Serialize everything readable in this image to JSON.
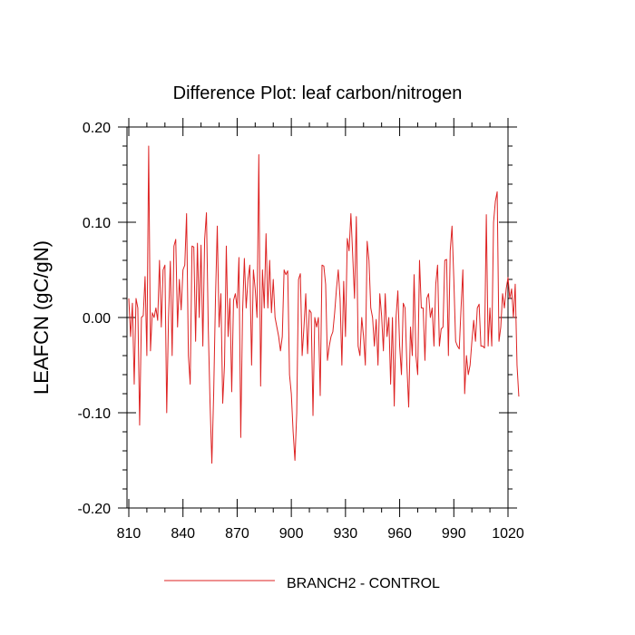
{
  "chart_data": {
    "type": "line",
    "title": "Difference Plot: leaf carbon/nitrogen",
    "xlabel": "",
    "ylabel": "LEAFCN  (gC/gN)",
    "xlim": [
      809,
      1020
    ],
    "ylim": [
      -0.2,
      0.2
    ],
    "x_ticks": [
      810,
      840,
      870,
      900,
      930,
      960,
      990,
      1020
    ],
    "x_tick_labels": [
      "810",
      "840",
      "870",
      "900",
      "930",
      "960",
      "990",
      "1020"
    ],
    "y_ticks": [
      0.2,
      0.1,
      0.0,
      -0.1,
      -0.2
    ],
    "y_tick_labels": [
      "0.20",
      "0.10",
      "0.00",
      "-0.10",
      "-0.20"
    ],
    "grid": false,
    "legend_position": "bottom-center",
    "line_color": "#dd2222",
    "series": [
      {
        "name": "BRANCH2 - CONTROL",
        "x_start": 810,
        "x_step": 1,
        "values": [
          0.02,
          -0.02,
          0.015,
          -0.07,
          0.02,
          0.01,
          -0.113,
          0.0,
          0.002,
          0.043,
          -0.04,
          0.18,
          -0.035,
          0.005,
          0.0,
          0.01,
          -0.003,
          0.06,
          -0.01,
          0.05,
          0.055,
          -0.1,
          0.0,
          0.059,
          -0.04,
          0.075,
          0.082,
          -0.01,
          0.04,
          0.008,
          0.05,
          0.055,
          0.109,
          -0.04,
          -0.07,
          0.075,
          0.074,
          -0.025,
          0.078,
          0.0,
          0.076,
          -0.03,
          0.082,
          0.11,
          -0.01,
          -0.09,
          -0.153,
          -0.08,
          0.02,
          0.096,
          -0.01,
          0.025,
          -0.09,
          -0.05,
          0.075,
          -0.02,
          0.02,
          -0.078,
          0.018,
          0.025,
          0.01,
          0.063,
          -0.126,
          0.005,
          0.062,
          0.01,
          0.04,
          0.055,
          -0.05,
          0.05,
          0.03,
          0.0,
          0.171,
          -0.072,
          0.05,
          0.01,
          0.088,
          0.01,
          0.06,
          0.005,
          0.04,
          0.0,
          -0.01,
          -0.02,
          -0.035,
          -0.02,
          0.05,
          0.045,
          0.049,
          -0.06,
          -0.08,
          -0.12,
          -0.15,
          -0.1,
          0.04,
          0.046,
          -0.04,
          -0.01,
          0.025,
          -0.038,
          0.008,
          0.005,
          -0.103,
          0.0,
          -0.01,
          0.0,
          -0.082,
          0.055,
          0.054,
          0.035,
          -0.045,
          -0.03,
          -0.02,
          -0.015,
          0.005,
          0.03,
          0.05,
          0.02,
          -0.05,
          0.038,
          -0.02,
          0.083,
          0.07,
          0.109,
          0.065,
          0.02,
          0.106,
          -0.03,
          -0.04,
          0.0,
          -0.02,
          -0.05,
          0.08,
          0.06,
          0.01,
          0.0,
          -0.03,
          -0.002,
          -0.05,
          0.025,
          0.002,
          -0.035,
          0.025,
          -0.02,
          0.0,
          -0.07,
          0.0,
          -0.093,
          0.0,
          0.028,
          -0.03,
          -0.06,
          0.015,
          0.01,
          -0.05,
          -0.094,
          -0.01,
          -0.04,
          0.045,
          -0.04,
          -0.06,
          0.06,
          0.01,
          0.01,
          -0.045,
          0.02,
          0.025,
          0.0,
          0.01,
          -0.03,
          0.035,
          0.055,
          -0.03,
          -0.012,
          -0.01,
          0.06,
          0.061,
          -0.04,
          0.07,
          0.096,
          0.04,
          -0.025,
          -0.03,
          -0.033,
          0.01,
          0.05,
          -0.08,
          -0.04,
          -0.06,
          -0.05,
          -0.025,
          -0.003,
          -0.025,
          0.01,
          0.014,
          -0.03,
          -0.03,
          -0.032,
          0.108,
          -0.03,
          0.01,
          -0.03,
          0.1,
          0.122,
          0.132,
          -0.025,
          -0.01,
          0.025,
          0.01,
          0.03,
          0.042,
          0.02,
          0.03,
          0.0,
          0.035,
          -0.05,
          -0.083
        ]
      }
    ]
  }
}
